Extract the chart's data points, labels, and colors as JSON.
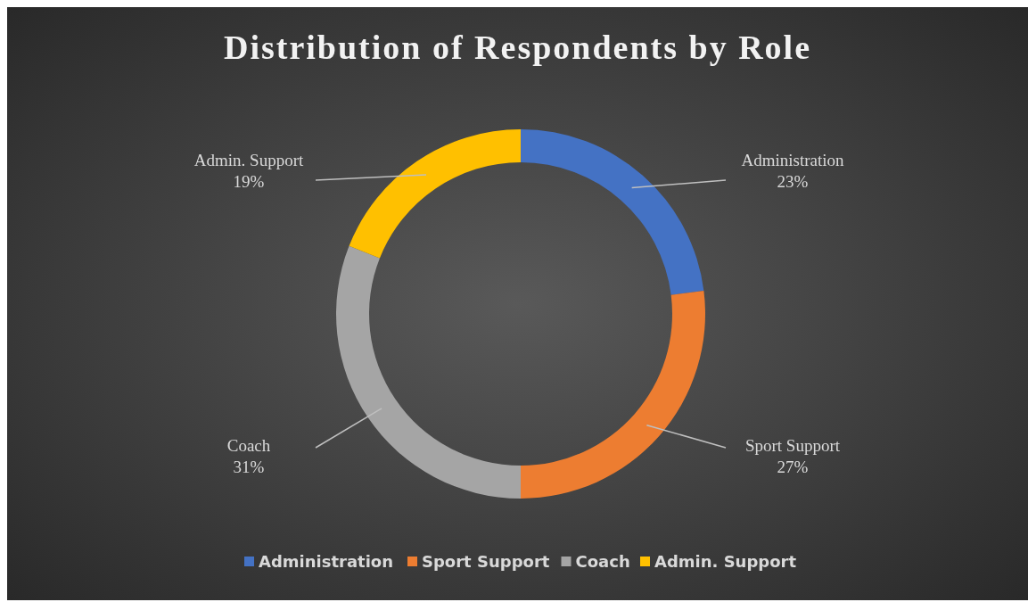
{
  "chart_data": {
    "type": "donut",
    "title": "Distribution of Respondents by Role",
    "categories": [
      "Administration",
      "Sport Support",
      "Coach",
      "Admin. Support"
    ],
    "values": [
      23,
      27,
      31,
      19
    ],
    "colors": [
      "#4472c4",
      "#ed7d31",
      "#a5a5a5",
      "#ffc000"
    ],
    "value_labels": [
      "23%",
      "27%",
      "31%",
      "19%"
    ],
    "legend": "bottom"
  }
}
